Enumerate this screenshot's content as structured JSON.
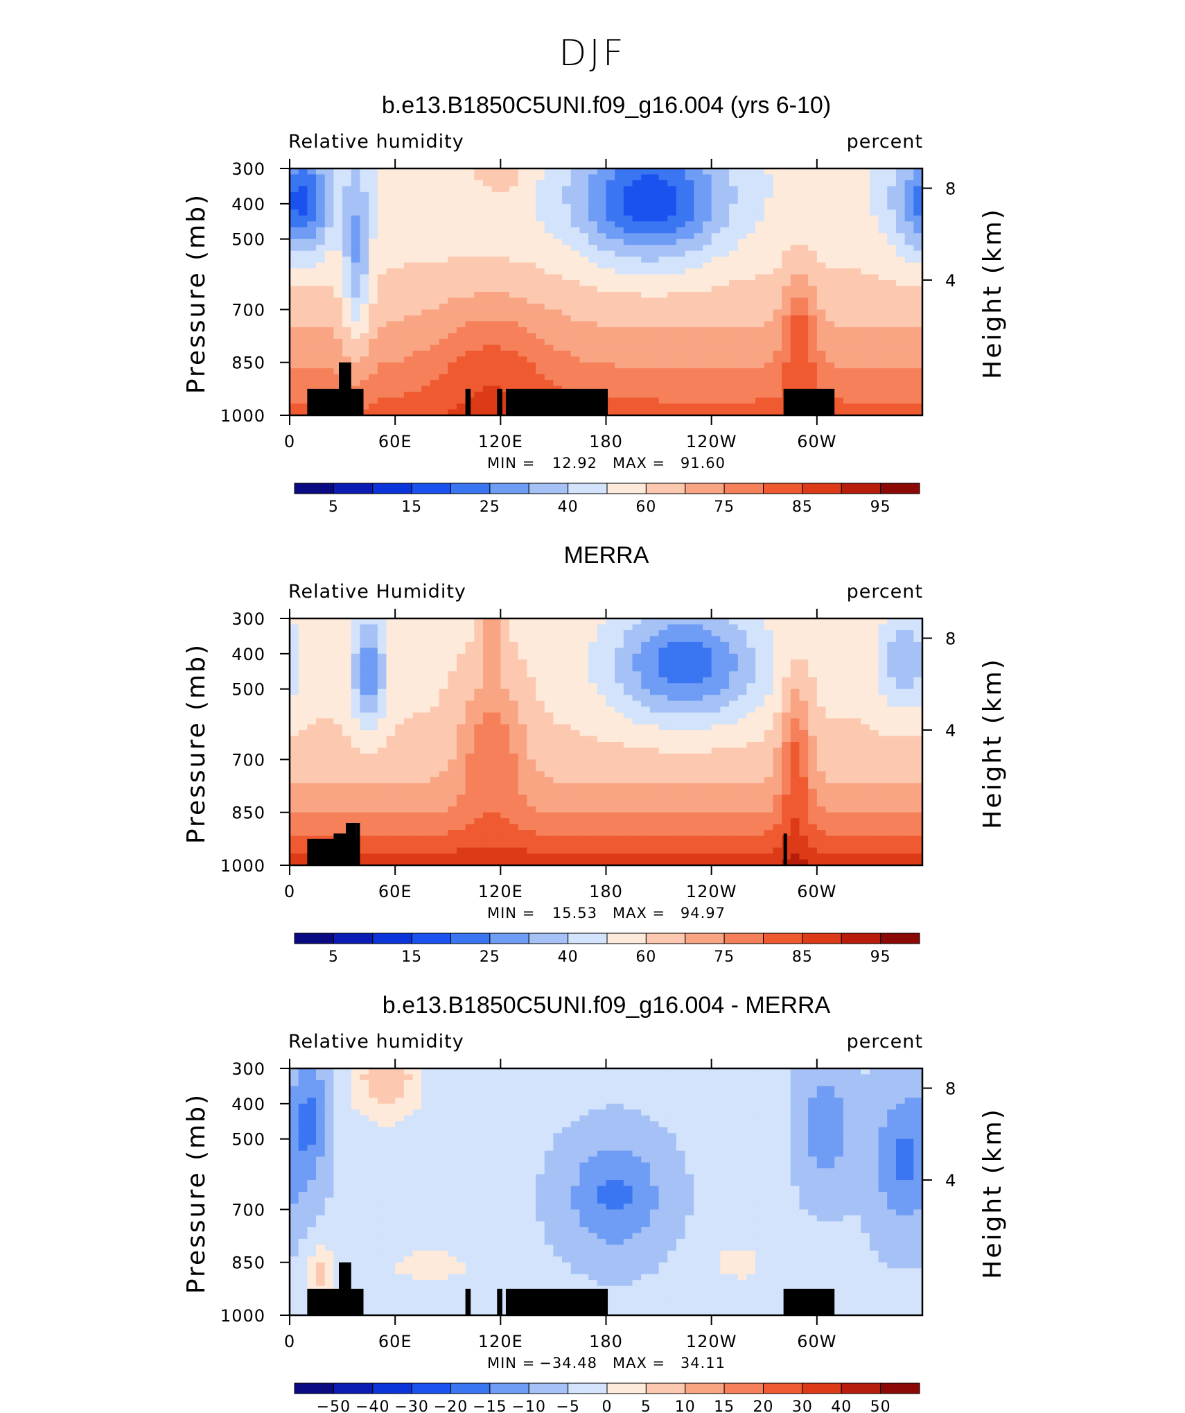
{
  "figure_title": "DJF",
  "colors": {
    "blue_to_red": [
      "#0a0a82",
      "#0a1cb4",
      "#0b35da",
      "#1a52f0",
      "#3a76f2",
      "#6f9cf4",
      "#a5c1f6",
      "#d2e3fb",
      "#fdeadb",
      "#fcc9b0",
      "#f9a584",
      "#f5805a",
      "#ef5a30",
      "#dd3a18",
      "#b81d0b",
      "#8c0a05"
    ],
    "land": "#000000"
  },
  "chart_data": [
    {
      "type": "heatmap",
      "title": "b.e13.B1850C5UNI.f09_g16.004 (yrs 6-10)",
      "left_label": "Relative humidity",
      "right_label": "percent",
      "ylabel": "Pressure (mb)",
      "y2label": "Height (km)",
      "x_ticks": [
        "0",
        "60E",
        "120E",
        "180",
        "120W",
        "60W"
      ],
      "x_tick_values": [
        0,
        60,
        120,
        180,
        240,
        300
      ],
      "xlim": [
        0,
        360
      ],
      "y_ticks": [
        "300",
        "400",
        "500",
        "700",
        "850",
        "1000"
      ],
      "y_tick_values": [
        300,
        400,
        500,
        700,
        850,
        1000
      ],
      "ylim": [
        1000,
        300
      ],
      "y2_ticks": [
        "8",
        "4"
      ],
      "y2_tick_values": [
        8,
        4
      ],
      "min_label": "MIN =",
      "min_value": "12.92",
      "max_label": "MAX =",
      "max_value": "91.60",
      "colorbar_labels": [
        "5",
        "15",
        "25",
        "40",
        "60",
        "75",
        "85",
        "95"
      ],
      "colorbar_levels": [
        5,
        10,
        15,
        20,
        25,
        30,
        40,
        50,
        60,
        70,
        75,
        80,
        85,
        90,
        95
      ]
    },
    {
      "type": "heatmap",
      "title": "MERRA",
      "left_label": "Relative Humidity",
      "right_label": "percent",
      "ylabel": "Pressure (mb)",
      "y2label": "Height (km)",
      "x_ticks": [
        "0",
        "60E",
        "120E",
        "180",
        "120W",
        "60W"
      ],
      "x_tick_values": [
        0,
        60,
        120,
        180,
        240,
        300
      ],
      "xlim": [
        0,
        360
      ],
      "y_ticks": [
        "300",
        "400",
        "500",
        "700",
        "850",
        "1000"
      ],
      "y_tick_values": [
        300,
        400,
        500,
        700,
        850,
        1000
      ],
      "ylim": [
        1000,
        300
      ],
      "y2_ticks": [
        "8",
        "4"
      ],
      "y2_tick_values": [
        8,
        4
      ],
      "min_label": "MIN =",
      "min_value": "15.53",
      "max_label": "MAX =",
      "max_value": "94.97",
      "colorbar_labels": [
        "5",
        "15",
        "25",
        "40",
        "60",
        "75",
        "85",
        "95"
      ],
      "colorbar_levels": [
        5,
        10,
        15,
        20,
        25,
        30,
        40,
        50,
        60,
        70,
        75,
        80,
        85,
        90,
        95
      ]
    },
    {
      "type": "heatmap",
      "title": "b.e13.B1850C5UNI.f09_g16.004 - MERRA",
      "left_label": "Relative humidity",
      "right_label": "percent",
      "ylabel": "Pressure (mb)",
      "y2label": "Height (km)",
      "x_ticks": [
        "0",
        "60E",
        "120E",
        "180",
        "120W",
        "60W"
      ],
      "x_tick_values": [
        0,
        60,
        120,
        180,
        240,
        300
      ],
      "xlim": [
        0,
        360
      ],
      "y_ticks": [
        "300",
        "400",
        "500",
        "700",
        "850",
        "1000"
      ],
      "y_tick_values": [
        300,
        400,
        500,
        700,
        850,
        1000
      ],
      "ylim": [
        1000,
        300
      ],
      "y2_ticks": [
        "8",
        "4"
      ],
      "y2_tick_values": [
        8,
        4
      ],
      "min_label": "MIN =",
      "min_value": "−34.48",
      "max_label": "MAX =",
      "max_value": "34.11",
      "colorbar_labels": [
        "−50",
        "−40",
        "−30",
        "−20",
        "−15",
        "−10",
        "−5",
        "0",
        "5",
        "10",
        "15",
        "20",
        "30",
        "40",
        "50"
      ],
      "colorbar_levels": [
        -50,
        -40,
        -30,
        -20,
        -15,
        -10,
        -5,
        0,
        5,
        10,
        15,
        20,
        30,
        40,
        50
      ]
    }
  ]
}
